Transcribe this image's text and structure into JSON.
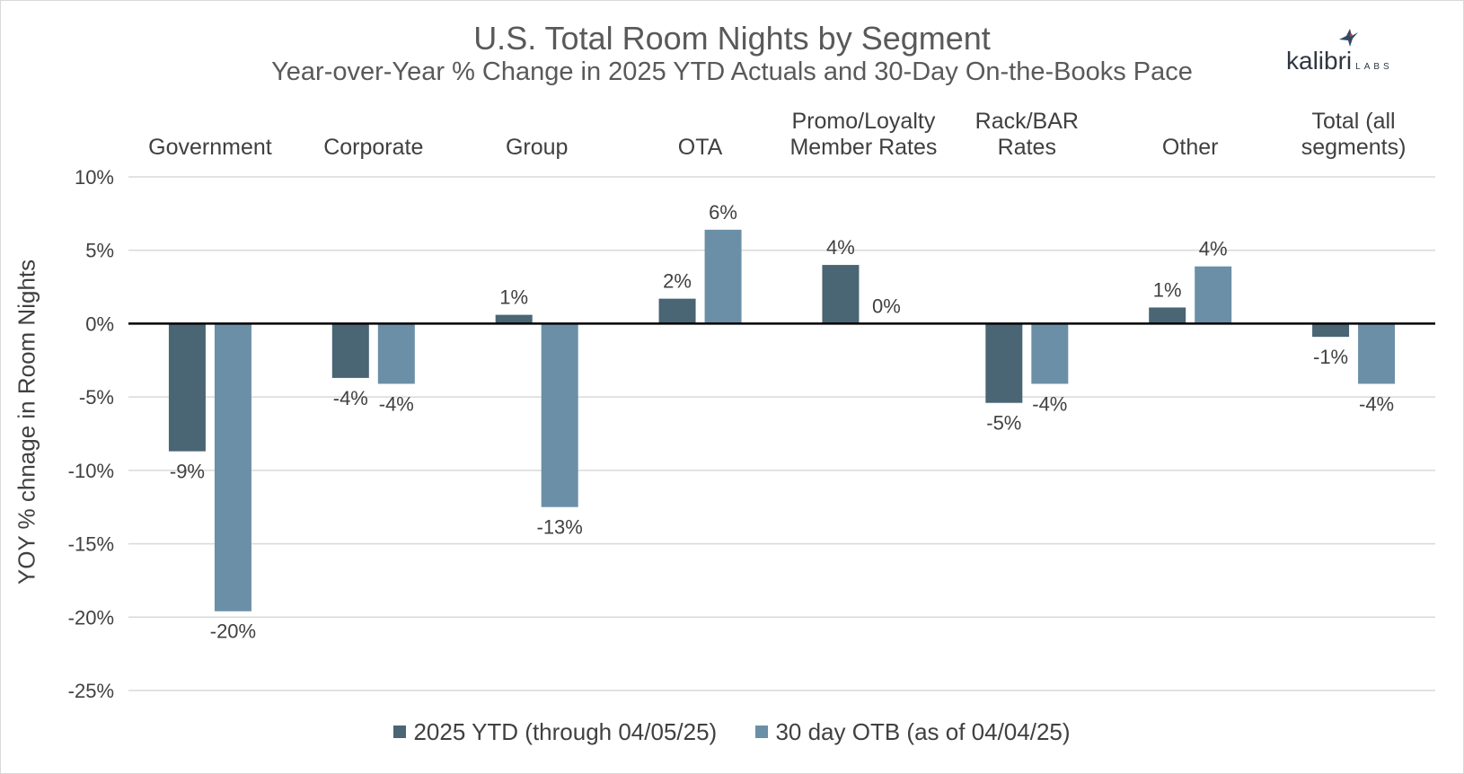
{
  "chart_data": {
    "type": "bar",
    "title": "U.S. Total Room Nights by Segment",
    "subtitle": "Year-over-Year % Change in 2025 YTD Actuals and 30-Day On-the-Books Pace",
    "xlabel": "",
    "ylabel": "YOY % chnage in Room Nights",
    "ylim": [
      -25,
      10
    ],
    "yticks": [
      10,
      5,
      0,
      -5,
      -10,
      -15,
      -20,
      -25
    ],
    "ytick_labels": [
      "10%",
      "5%",
      "0%",
      "-5%",
      "-10%",
      "-15%",
      "-20%",
      "-25%"
    ],
    "grid": true,
    "legend_position": "bottom",
    "categories": [
      [
        "Government"
      ],
      [
        "Corporate"
      ],
      [
        "Group"
      ],
      [
        "OTA"
      ],
      [
        "Promo/Loyalty",
        "Member Rates"
      ],
      [
        "Rack/BAR",
        "Rates"
      ],
      [
        "Other"
      ],
      [
        "Total (all",
        "segments)"
      ]
    ],
    "series": [
      {
        "name": "2025 YTD (through 04/05/25)",
        "color": "#4a6574",
        "values": [
          -8.7,
          -3.7,
          0.6,
          1.7,
          4.0,
          -5.4,
          1.1,
          -0.9
        ],
        "labels": [
          "-9%",
          "-4%",
          "1%",
          "2%",
          "4%",
          "-5%",
          "1%",
          "-1%"
        ]
      },
      {
        "name": "30 day OTB (as of 04/04/25)",
        "color": "#6b8fa6",
        "values": [
          -19.6,
          -4.1,
          -12.5,
          6.4,
          0.0,
          -4.1,
          3.9,
          -4.1
        ],
        "labels": [
          "-20%",
          "-4%",
          "-13%",
          "6%",
          "0%",
          "-4%",
          "4%",
          "-4%"
        ]
      }
    ]
  },
  "logo": {
    "name": "kalibri",
    "suffix": "LABS"
  }
}
